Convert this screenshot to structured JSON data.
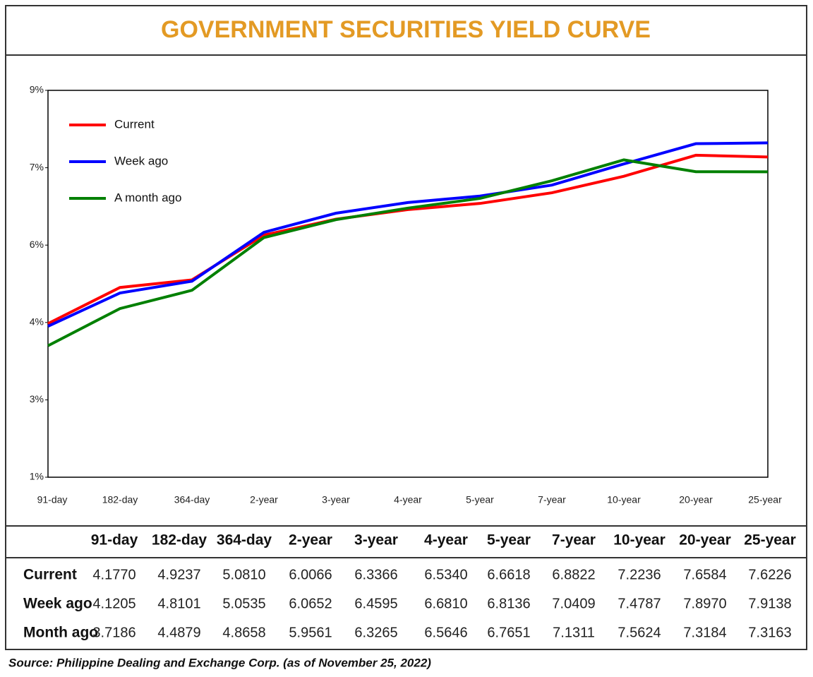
{
  "chart_data": {
    "type": "line",
    "title": "GOVERNMENT SECURITIES YIELD CURVE",
    "categories": [
      "91-day",
      "182-day",
      "364-day",
      "2-year",
      "3-year",
      "4-year",
      "5-year",
      "7-year",
      "10-year",
      "20-year",
      "25-year"
    ],
    "series": [
      {
        "name": "Current",
        "color": "#ff0000",
        "values": [
          4.177,
          4.9237,
          5.081,
          6.0066,
          6.3366,
          6.534,
          6.6618,
          6.8822,
          7.2236,
          7.6584,
          7.6226
        ],
        "value_labels": [
          "4.1770",
          "4.9237",
          "5.0810",
          "6.0066",
          "6.3366",
          "6.5340",
          "6.6618",
          "6.8822",
          "7.2236",
          "7.6584",
          "7.6226"
        ]
      },
      {
        "name": "Week ago",
        "color": "#0000ff",
        "values": [
          4.1205,
          4.8101,
          5.0535,
          6.0652,
          6.4595,
          6.681,
          6.8136,
          7.0409,
          7.4787,
          7.897,
          7.9138
        ],
        "value_labels": [
          "4.1205",
          "4.8101",
          "5.0535",
          "6.0652",
          "6.4595",
          "6.6810",
          "6.8136",
          "7.0409",
          "7.4787",
          "7.8970",
          "7.9138"
        ]
      },
      {
        "name": "A month ago",
        "color": "#008000",
        "values": [
          3.7186,
          4.4879,
          4.8658,
          5.9561,
          6.3265,
          6.5646,
          6.7651,
          7.1311,
          7.5624,
          7.3184,
          7.3163
        ],
        "value_labels": [
          "3.7186",
          "4.4879",
          "4.8658",
          "5.9561",
          "6.3265",
          "6.5646",
          "6.7651",
          "7.1311",
          "7.5624",
          "7.3184",
          "7.3163"
        ]
      }
    ],
    "ylim": [
      1,
      9
    ],
    "yticks": [
      {
        "value": 1,
        "label": "1%"
      },
      {
        "value": 2.6,
        "label": "3%"
      },
      {
        "value": 4.2,
        "label": "4%"
      },
      {
        "value": 5.8,
        "label": "6%"
      },
      {
        "value": 7.4,
        "label": "7%"
      },
      {
        "value": 9,
        "label": "9%"
      }
    ],
    "legend": "upper left",
    "grid": false
  },
  "table": {
    "row_labels": [
      "Current",
      "Week ago",
      "Month ago"
    ]
  },
  "source": "Source: Philippine Dealing and Exchange Corp. (as of November 25, 2022)"
}
